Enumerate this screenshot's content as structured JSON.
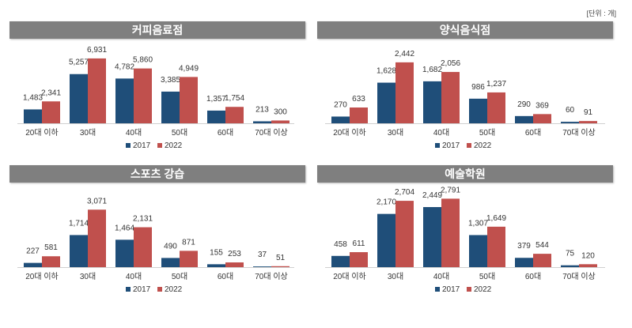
{
  "unit_label": "[단위 : 개]",
  "colors": {
    "s2017": "#1f4e79",
    "s2022": "#c0504d",
    "header": "#7f7f7f"
  },
  "chart_data": [
    {
      "type": "bar",
      "title": "커피음료점",
      "categories": [
        "20대 이하",
        "30대",
        "40대",
        "50대",
        "60대",
        "70대 이상"
      ],
      "series": [
        {
          "name": "2017",
          "values": [
            1483,
            5257,
            4782,
            3385,
            1357,
            213
          ],
          "labels": [
            "1,483",
            "5,257",
            "4,782",
            "3,385",
            "1,357",
            "213"
          ]
        },
        {
          "name": "2022",
          "values": [
            2341,
            6931,
            5860,
            4949,
            1754,
            300
          ],
          "labels": [
            "2,341",
            "6,931",
            "5,860",
            "4,949",
            "1,754",
            "300"
          ]
        }
      ],
      "ylim": [
        0,
        7600
      ],
      "legend": "bottom"
    },
    {
      "type": "bar",
      "title": "양식음식점",
      "categories": [
        "20대 이하",
        "30대",
        "40대",
        "50대",
        "60대",
        "70대 이상"
      ],
      "series": [
        {
          "name": "2017",
          "values": [
            270,
            1628,
            1682,
            986,
            290,
            60
          ],
          "labels": [
            "270",
            "1,628",
            "1,682",
            "986",
            "290",
            "60"
          ]
        },
        {
          "name": "2022",
          "values": [
            633,
            2442,
            2056,
            1237,
            369,
            91
          ],
          "labels": [
            "633",
            "2,442",
            "2,056",
            "1,237",
            "369",
            "91"
          ]
        }
      ],
      "ylim": [
        0,
        2850
      ],
      "legend": "bottom"
    },
    {
      "type": "bar",
      "title": "스포츠 강습",
      "categories": [
        "20대 이하",
        "30대",
        "40대",
        "50대",
        "60대",
        "70대 이상"
      ],
      "series": [
        {
          "name": "2017",
          "values": [
            227,
            1714,
            1464,
            490,
            155,
            37
          ],
          "labels": [
            "227",
            "1,714",
            "1,464",
            "490",
            "155",
            "37"
          ]
        },
        {
          "name": "2022",
          "values": [
            581,
            3071,
            2131,
            871,
            253,
            51
          ],
          "labels": [
            "581",
            "3,071",
            "2,131",
            "871",
            "253",
            "51"
          ]
        }
      ],
      "ylim": [
        0,
        3800
      ],
      "legend": "bottom"
    },
    {
      "type": "bar",
      "title": "예술학원",
      "categories": [
        "20대 이하",
        "30대",
        "40대",
        "50대",
        "60대",
        "70대 이상"
      ],
      "series": [
        {
          "name": "2017",
          "values": [
            458,
            2170,
            2449,
            1307,
            379,
            75
          ],
          "labels": [
            "458",
            "2,170",
            "2,449",
            "1,307",
            "379",
            "75"
          ]
        },
        {
          "name": "2022",
          "values": [
            611,
            2704,
            2791,
            1649,
            544,
            120
          ],
          "labels": [
            "611",
            "2,704",
            "2,791",
            "1,649",
            "544",
            "120"
          ]
        }
      ],
      "ylim": [
        0,
        2900
      ],
      "legend": "bottom"
    }
  ]
}
